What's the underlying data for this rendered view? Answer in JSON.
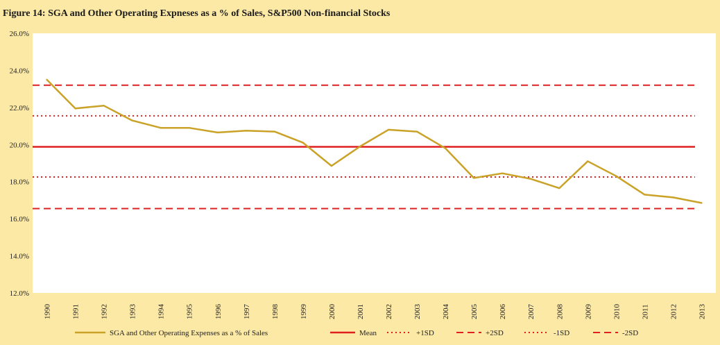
{
  "chart_data": {
    "type": "line",
    "title": "Figure 14: SGA and Other Operating Expneses as a % of Sales, S&P500 Non-financial Stocks",
    "x": [
      "1990",
      "1991",
      "1992",
      "1993",
      "1994",
      "1995",
      "1996",
      "1997",
      "1998",
      "1999",
      "2000",
      "2001",
      "2002",
      "2003",
      "2004",
      "2005",
      "2006",
      "2007",
      "2008",
      "2009",
      "2010",
      "2011",
      "2012",
      "2013"
    ],
    "series": [
      {
        "name": "SGA and Other Operating Expenses as a % of Sales",
        "color": "#C9A227",
        "style": "solid",
        "values": [
          23.5,
          21.95,
          22.1,
          21.3,
          20.9,
          20.9,
          20.65,
          20.75,
          20.7,
          20.1,
          18.85,
          19.9,
          20.8,
          20.7,
          19.8,
          18.2,
          18.45,
          18.15,
          17.65,
          19.1,
          18.3,
          17.3,
          17.15,
          16.85
        ]
      },
      {
        "name": "Mean",
        "color": "#E02020",
        "style": "solid",
        "constant": 19.88
      },
      {
        "name": "+1SD",
        "color": "#E02020",
        "style": "dotted",
        "constant": 21.55
      },
      {
        "name": "+2SD",
        "color": "#E02020",
        "style": "dashed",
        "constant": 23.2
      },
      {
        "name": "-1SD",
        "color": "#E02020",
        "style": "dotted",
        "constant": 18.25
      },
      {
        "name": "-2SD",
        "color": "#E02020",
        "style": "dashed",
        "constant": 16.55
      }
    ],
    "yticks": [
      "12.0%",
      "14.0%",
      "16.0%",
      "18.0%",
      "20.0%",
      "22.0%",
      "24.0%",
      "26.0%"
    ],
    "ylim": [
      12,
      26
    ],
    "xlabel": "",
    "ylabel": "",
    "grid": false,
    "legend": "bottom",
    "plot_background": "#FFFFFF",
    "page_background": "#FCE9A6"
  }
}
